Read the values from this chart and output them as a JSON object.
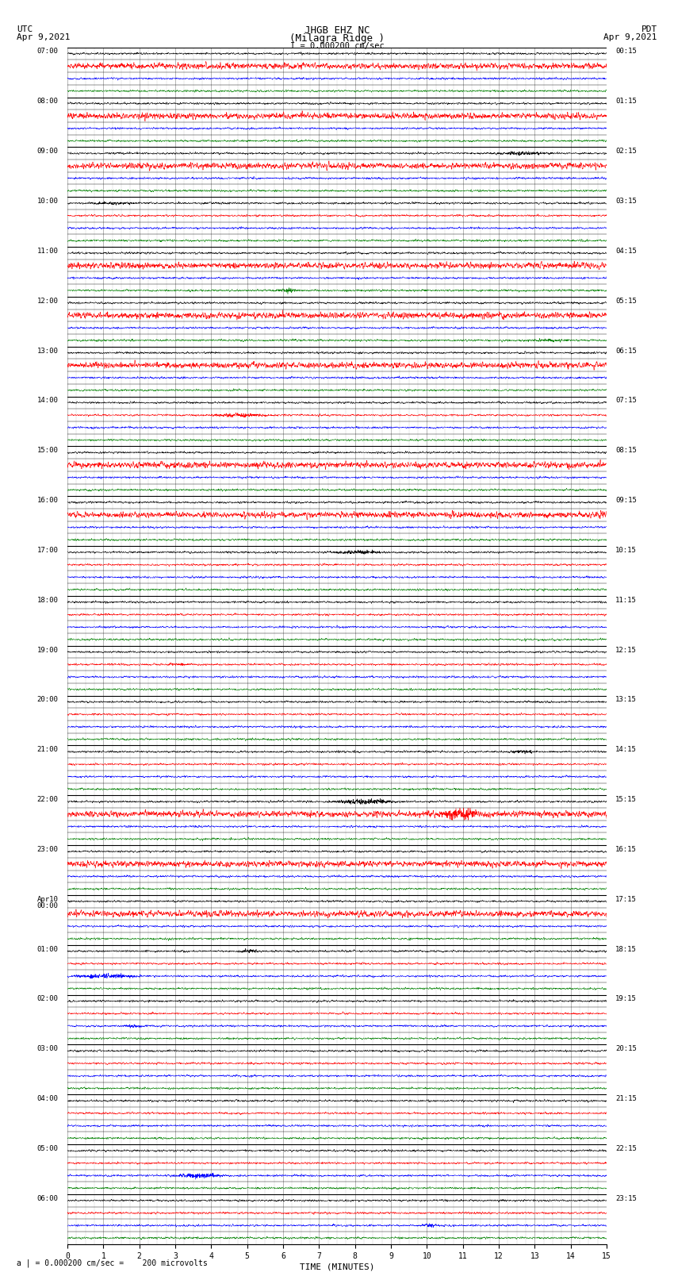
{
  "title_line1": "JHGB EHZ NC",
  "title_line2": "(Milagra Ridge )",
  "scale_label": "I = 0.000200 cm/sec",
  "utc_label": "UTC",
  "pdt_label": "PDT",
  "date_left": "Apr 9,2021",
  "date_right": "Apr 9,2021",
  "bottom_label": "a | = 0.000200 cm/sec =    200 microvolts",
  "xlabel": "TIME (MINUTES)",
  "xmin": 0,
  "xmax": 15,
  "bg_color": "#ffffff",
  "grid_color": "#aaaaaa",
  "trace_amplitude": 0.06,
  "trace_linewidth": 0.4,
  "left_times": [
    "07:00",
    "",
    "",
    "",
    "08:00",
    "",
    "",
    "",
    "09:00",
    "",
    "",
    "",
    "10:00",
    "",
    "",
    "",
    "11:00",
    "",
    "",
    "",
    "12:00",
    "",
    "",
    "",
    "13:00",
    "",
    "",
    "",
    "14:00",
    "",
    "",
    "",
    "15:00",
    "",
    "",
    "",
    "16:00",
    "",
    "",
    "",
    "17:00",
    "",
    "",
    "",
    "18:00",
    "",
    "",
    "",
    "19:00",
    "",
    "",
    "",
    "20:00",
    "",
    "",
    "",
    "21:00",
    "",
    "",
    "",
    "22:00",
    "",
    "",
    "",
    "23:00",
    "",
    "",
    "",
    "Apr10\n00:00",
    "",
    "",
    "",
    "01:00",
    "",
    "",
    "",
    "02:00",
    "",
    "",
    "",
    "03:00",
    "",
    "",
    "",
    "04:00",
    "",
    "",
    "",
    "05:00",
    "",
    "",
    "",
    "06:00",
    "",
    "",
    ""
  ],
  "right_times": [
    "00:15",
    "",
    "",
    "",
    "01:15",
    "",
    "",
    "",
    "02:15",
    "",
    "",
    "",
    "03:15",
    "",
    "",
    "",
    "04:15",
    "",
    "",
    "",
    "05:15",
    "",
    "",
    "",
    "06:15",
    "",
    "",
    "",
    "07:15",
    "",
    "",
    "",
    "08:15",
    "",
    "",
    "",
    "09:15",
    "",
    "",
    "",
    "10:15",
    "",
    "",
    "",
    "11:15",
    "",
    "",
    "",
    "12:15",
    "",
    "",
    "",
    "13:15",
    "",
    "",
    "",
    "14:15",
    "",
    "",
    "",
    "15:15",
    "",
    "",
    "",
    "16:15",
    "",
    "",
    "",
    "17:15",
    "",
    "",
    "",
    "18:15",
    "",
    "",
    "",
    "19:15",
    "",
    "",
    "",
    "20:15",
    "",
    "",
    "",
    "21:15",
    "",
    "",
    "",
    "22:15",
    "",
    "",
    "",
    "23:15",
    "",
    "",
    ""
  ],
  "row_colors": [
    "#000000",
    "#ff0000",
    "#0000ff",
    "#008000",
    "#000000",
    "#ff0000",
    "#0000ff",
    "#008000",
    "#000000",
    "#ff0000",
    "#0000ff",
    "#008000",
    "#000000",
    "#ff0000",
    "#0000ff",
    "#008000",
    "#000000",
    "#ff0000",
    "#0000ff",
    "#008000",
    "#000000",
    "#ff0000",
    "#0000ff",
    "#008000",
    "#000000",
    "#ff0000",
    "#0000ff",
    "#008000",
    "#000000",
    "#ff0000",
    "#0000ff",
    "#008000",
    "#000000",
    "#ff0000",
    "#0000ff",
    "#008000",
    "#000000",
    "#ff0000",
    "#0000ff",
    "#008000",
    "#000000",
    "#ff0000",
    "#0000ff",
    "#008000",
    "#000000",
    "#ff0000",
    "#0000ff",
    "#008000",
    "#000000",
    "#ff0000",
    "#0000ff",
    "#008000",
    "#000000",
    "#ff0000",
    "#0000ff",
    "#008000",
    "#000000",
    "#ff0000",
    "#0000ff",
    "#008000",
    "#000000",
    "#ff0000",
    "#0000ff",
    "#008000",
    "#000000",
    "#ff0000",
    "#0000ff",
    "#008000",
    "#000000",
    "#ff0000",
    "#0000ff",
    "#008000",
    "#000000",
    "#ff0000",
    "#0000ff",
    "#008000",
    "#000000",
    "#ff0000",
    "#0000ff",
    "#008000",
    "#000000",
    "#ff0000",
    "#0000ff",
    "#008000",
    "#000000",
    "#ff0000",
    "#0000ff",
    "#008000",
    "#000000",
    "#ff0000",
    "#0000ff",
    "#008000",
    "#000000",
    "#ff0000",
    "#0000ff",
    "#008000"
  ]
}
